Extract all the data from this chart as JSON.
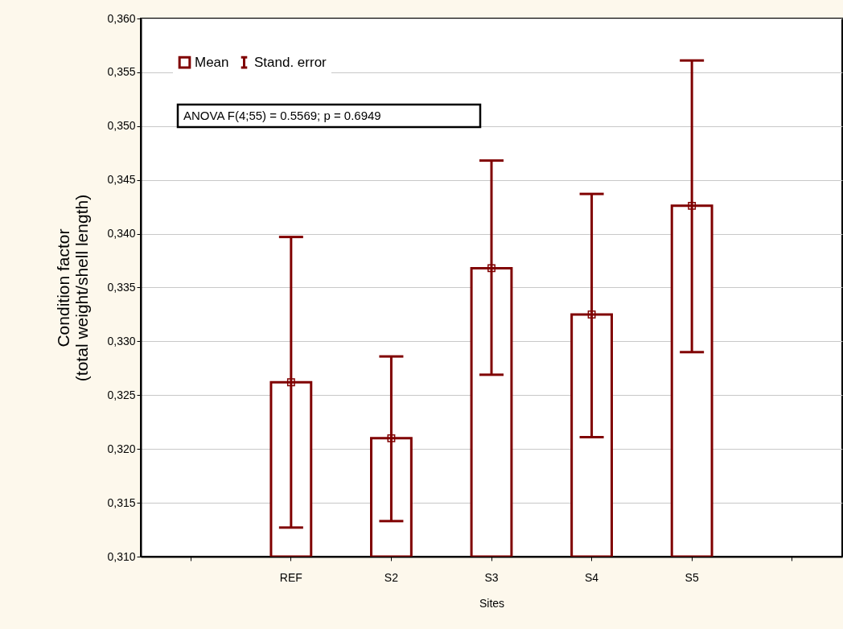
{
  "chart_data": {
    "type": "bar",
    "xlabel": "Sites",
    "ylabel": "Condition factor\n(total weight/shell length)",
    "categories": [
      null,
      "REF",
      "S2",
      "S3",
      "S4",
      "S5",
      null
    ],
    "series": [
      {
        "color": "#800000",
        "values": [
          null,
          0.3262,
          0.321,
          0.3368,
          0.3325,
          0.3426,
          null
        ],
        "errors": [
          null,
          [
            0.3127,
            0.3397
          ],
          [
            0.3133,
            0.3286
          ],
          [
            0.3269,
            0.3468
          ],
          [
            0.3211,
            0.3437
          ],
          [
            0.329,
            0.3561
          ],
          null
        ]
      },
      {
        "type": "scatter",
        "name": "Mean",
        "color": "#800000",
        "x": [
          "REF",
          "S2",
          "S3",
          "S4",
          "S5"
        ],
        "values": [
          0.3262,
          0.321,
          0.3368,
          0.3325,
          0.3426
        ]
      }
    ],
    "marker": "square",
    "ylim": [
      0.31,
      0.36
    ],
    "yticks": [
      {
        "value": 0.31,
        "label": "0,310"
      },
      {
        "value": 0.315,
        "label": "0,315"
      },
      {
        "value": 0.32,
        "label": "0,320"
      },
      {
        "value": 0.325,
        "label": "0,325"
      },
      {
        "value": 0.33,
        "label": "0,330"
      },
      {
        "value": 0.335,
        "label": "0,335"
      },
      {
        "value": 0.34,
        "label": "0,340"
      },
      {
        "value": 0.345,
        "label": "0,345"
      },
      {
        "value": 0.35,
        "label": "0,350"
      },
      {
        "value": 0.355,
        "label": "0,355"
      },
      {
        "value": 0.36,
        "label": "0,360"
      }
    ],
    "grid": "y",
    "legend": "top left",
    "annotations": [
      "Stand. error",
      "ANOVA  F(4;55) = 0.5569; p = 0.6949"
    ]
  }
}
